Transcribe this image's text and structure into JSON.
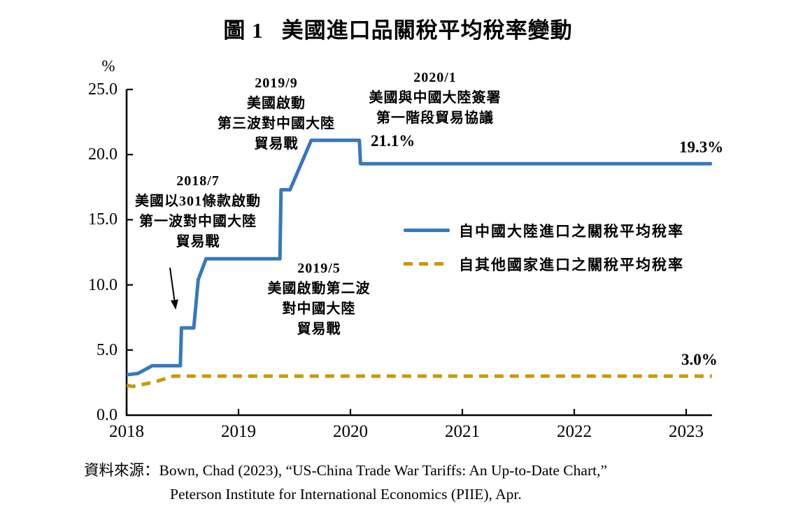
{
  "figure": {
    "title_prefix": "圖 1",
    "title_text": "美國進口品關稅平均稅率變動"
  },
  "chart_data": {
    "type": "line",
    "title": "圖 1 美國進口品關稅平均稅率變動",
    "xlabel": "",
    "ylabel": "%",
    "y_unit": "%",
    "xlim": [
      2018,
      2023.23
    ],
    "ylim": [
      0,
      25
    ],
    "x_ticks": [
      2018,
      2019,
      2020,
      2021,
      2022,
      2023
    ],
    "y_ticks": [
      0,
      5,
      10,
      15,
      20,
      25
    ],
    "y_tick_labels": [
      "0.0",
      "5.0",
      "10.0",
      "15.0",
      "20.0",
      "25.0"
    ],
    "grid": false,
    "legend_position": "center-right",
    "axis_color": "#000000",
    "series": [
      {
        "name": "自中國大陸進口之關稅平均稅率",
        "color": "#3778BE",
        "style": "solid",
        "end_label": "19.3%",
        "points": [
          [
            2018.0,
            3.1
          ],
          [
            2018.1,
            3.2
          ],
          [
            2018.23,
            3.8
          ],
          [
            2018.48,
            3.8
          ],
          [
            2018.49,
            6.7
          ],
          [
            2018.6,
            6.7
          ],
          [
            2018.64,
            10.4
          ],
          [
            2018.71,
            12.0
          ],
          [
            2019.37,
            12.0
          ],
          [
            2019.38,
            17.3
          ],
          [
            2019.46,
            17.3
          ],
          [
            2019.65,
            21.1
          ],
          [
            2020.08,
            21.1
          ],
          [
            2020.09,
            19.3
          ],
          [
            2023.23,
            19.3
          ]
        ]
      },
      {
        "name": "自其他國家進口之關稅平均稅率",
        "color": "#C79A02",
        "style": "dashed",
        "end_label": "3.0%",
        "points": [
          [
            2018.0,
            2.3
          ],
          [
            2018.05,
            2.2
          ],
          [
            2018.25,
            2.55
          ],
          [
            2018.42,
            3.0
          ],
          [
            2023.23,
            3.0
          ]
        ]
      }
    ]
  },
  "annotations": {
    "event_2018_7": {
      "lines": [
        "2018/7",
        "美國以301條款啟動",
        "第一波對中國大陸",
        "貿易戰"
      ]
    },
    "event_2019_9": {
      "lines": [
        "2019/9",
        "美國啟動",
        "第三波對中國大陸",
        "貿易戰"
      ]
    },
    "event_2020_1": {
      "lines": [
        "2020/1",
        "美國與中國大陸簽署",
        "第一階段貿易協議"
      ]
    },
    "event_2019_5": {
      "lines": [
        "2019/5",
        "美國啟動第二波",
        "對中國大陸",
        "貿易戰"
      ]
    },
    "peak_label": "21.1%",
    "china_end_label": "19.3%",
    "others_end_label": "3.0%"
  },
  "source": {
    "prefix": "資料來源：",
    "line1": "Bown, Chad (2023), “US-China Trade War Tariffs: An Up-to-Date Chart,”",
    "line2": "Peterson Institute for International Economics (PIIE), Apr."
  }
}
